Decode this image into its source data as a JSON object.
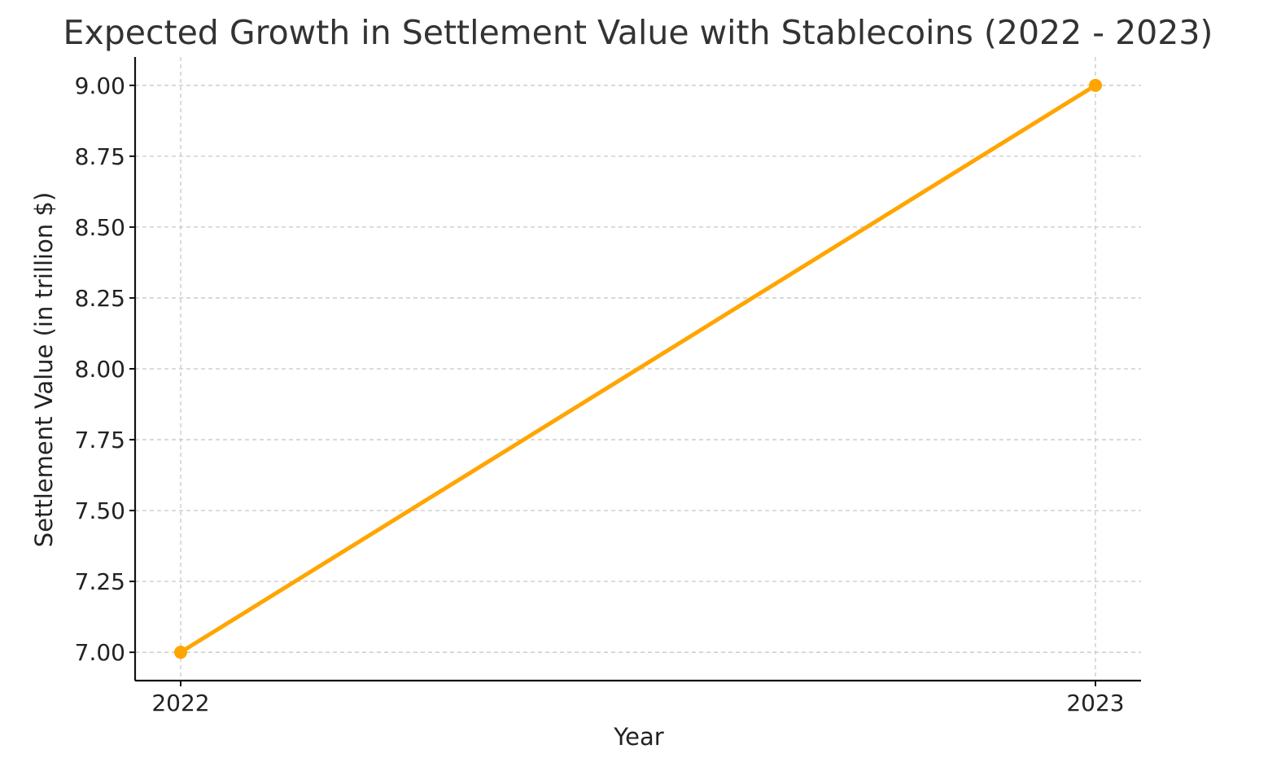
{
  "chart_data": {
    "type": "line",
    "title": "Expected Growth in Settlement Value with Stablecoins (2022 - 2023)",
    "xlabel": "Year",
    "ylabel": "Settlement Value (in trillion $)",
    "categories": [
      "2022",
      "2023"
    ],
    "series": [
      {
        "values": [
          7.0,
          9.0
        ],
        "color": "#ffa500",
        "marker": "circle"
      }
    ],
    "y_ticks": [
      "7.00",
      "7.25",
      "7.50",
      "7.75",
      "8.00",
      "8.25",
      "8.50",
      "8.75",
      "9.00"
    ],
    "ylim": [
      6.9,
      9.1
    ],
    "grid": true,
    "legend": "none"
  }
}
